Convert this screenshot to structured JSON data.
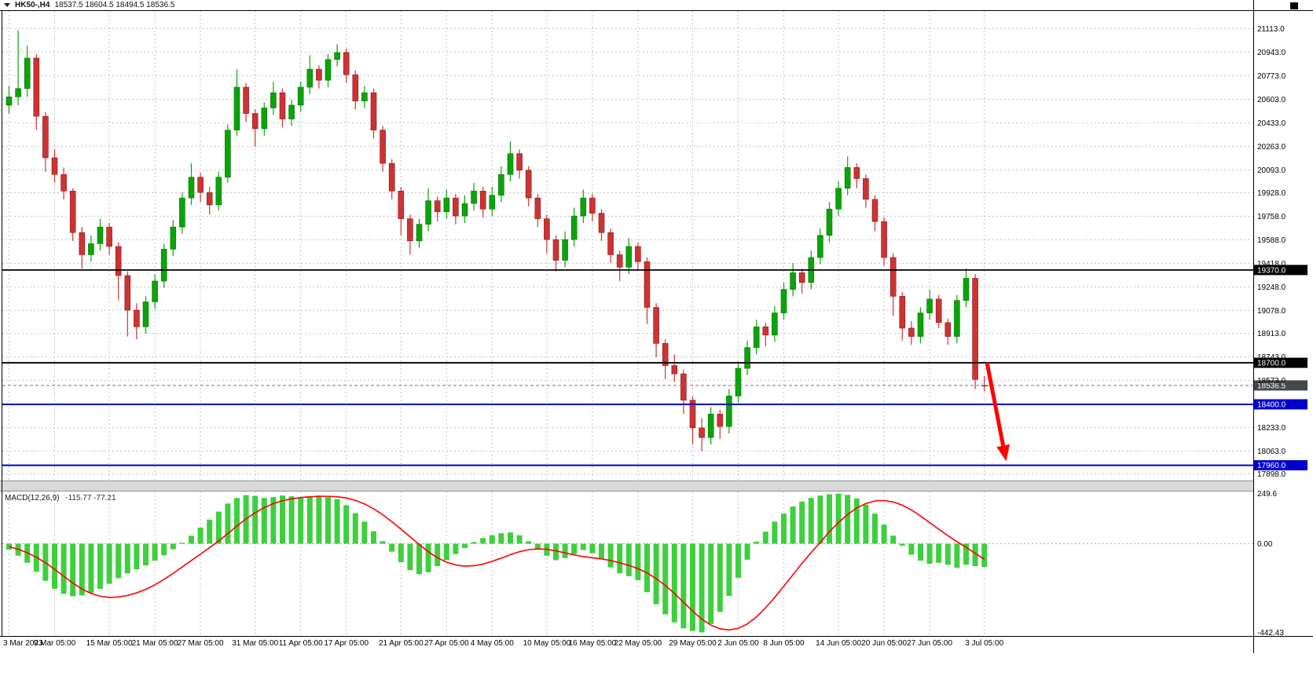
{
  "header": {
    "symbol_period": "HK50-,H4",
    "ohlc": "18537.5 18604.5 18494.5 18536.5"
  },
  "macd_panel": {
    "label": "MACD(12,26,9)",
    "values": "-115.77 -77.21"
  },
  "colors": {
    "bg": "#ffffff",
    "text": "#000000",
    "grid": "#c4c4c4",
    "up": "#0ca30a",
    "up_dark": "#067806",
    "down": "#cd3333",
    "down_dark": "#8b1a1a",
    "hist": "#3ecf3e",
    "signal": "#ff0000",
    "level_black": "#000000",
    "level_blue": "#0000cd",
    "bid_line": "#777777",
    "bid_badge": "#43484d",
    "arrow": "#ff0000",
    "separator": "#d9d9d9"
  },
  "price_axis": {
    "ticks": [
      "21113.0",
      "20943.0",
      "20773.0",
      "20603.0",
      "20433.0",
      "20263.0",
      "20093.0",
      "19928.0",
      "19758.0",
      "19588.0",
      "19418.0",
      "19248.0",
      "19078.0",
      "18913.0",
      "18743.0",
      "18573.0",
      "18233.0",
      "18063.0",
      "17898.0"
    ],
    "levels": [
      {
        "label": "19370.0",
        "value": 19370.0,
        "style": "black",
        "name": "resistance-19370"
      },
      {
        "label": "18700.0",
        "value": 18700.0,
        "style": "black",
        "name": "support-18700"
      },
      {
        "label": "18536.5",
        "value": 18536.5,
        "style": "bid",
        "name": "bid-price"
      },
      {
        "label": "18400.0",
        "value": 18400.0,
        "style": "blue",
        "name": "support-18400"
      },
      {
        "label": "17960.0",
        "value": 17960.0,
        "style": "blue",
        "name": "target-17960"
      }
    ]
  },
  "macd_axis": {
    "ticks": [
      "249.6",
      "0.00",
      "-442.43"
    ]
  },
  "time_axis": {
    "labels": [
      {
        "text": "3 Mar 2023",
        "index": 0
      },
      {
        "text": "9 Mar 05:00",
        "index": 5
      },
      {
        "text": "15 Mar 05:00",
        "index": 11
      },
      {
        "text": "21 Mar 05:00",
        "index": 16
      },
      {
        "text": "27 Mar 05:00",
        "index": 21
      },
      {
        "text": "31 Mar 05:00",
        "index": 27
      },
      {
        "text": "11 Apr 05:00",
        "index": 32
      },
      {
        "text": "17 Apr 05:00",
        "index": 37
      },
      {
        "text": "21 Apr 05:00",
        "index": 43
      },
      {
        "text": "27 Apr 05:00",
        "index": 48
      },
      {
        "text": "4 May 05:00",
        "index": 53
      },
      {
        "text": "10 May 05:00",
        "index": 59
      },
      {
        "text": "16 May 05:00",
        "index": 64
      },
      {
        "text": "22 May 05:00",
        "index": 69
      },
      {
        "text": "29 May 05:00",
        "index": 75
      },
      {
        "text": "2 Jun 05:00",
        "index": 80
      },
      {
        "text": "8 Jun 05:00",
        "index": 85
      },
      {
        "text": "14 Jun 05:00",
        "index": 91
      },
      {
        "text": "20 Jun 05:00",
        "index": 96
      },
      {
        "text": "27 Jun 05:00",
        "index": 101
      },
      {
        "text": "3 Jul 05:00",
        "index": 107
      }
    ]
  },
  "chart_data": {
    "type": "candlestick",
    "symbol": "HK50-",
    "timeframe": "H4",
    "price_range": [
      17850,
      21240
    ],
    "macd_range": [
      -460,
      260
    ],
    "hlines": [
      {
        "price": 19370.0,
        "color": "black"
      },
      {
        "price": 18700.0,
        "color": "black"
      },
      {
        "price": 18400.0,
        "color": "blue"
      },
      {
        "price": 17960.0,
        "color": "blue"
      }
    ],
    "bid": 18536.5,
    "last_bar": {
      "open": 18537.5,
      "high": 18604.5,
      "low": 18494.5,
      "close": 18536.5
    },
    "arrow": {
      "from_index": 107.6,
      "from_price": 18700,
      "to_index": 109.7,
      "to_price": 17990
    },
    "candles": [
      [
        20560,
        20700,
        20500,
        20620
      ],
      [
        20620,
        21100,
        20560,
        20680
      ],
      [
        20680,
        20990,
        20620,
        20900
      ],
      [
        20900,
        20930,
        20380,
        20480
      ],
      [
        20480,
        20510,
        20080,
        20180
      ],
      [
        20180,
        20240,
        20000,
        20060
      ],
      [
        20060,
        20110,
        19880,
        19940
      ],
      [
        19940,
        19960,
        19580,
        19640
      ],
      [
        19640,
        19680,
        19380,
        19480
      ],
      [
        19480,
        19620,
        19430,
        19560
      ],
      [
        19560,
        19740,
        19510,
        19680
      ],
      [
        19680,
        19710,
        19480,
        19540
      ],
      [
        19540,
        19570,
        19150,
        19330
      ],
      [
        19330,
        19360,
        18890,
        19080
      ],
      [
        19080,
        19130,
        18870,
        18960
      ],
      [
        18960,
        19180,
        18910,
        19140
      ],
      [
        19140,
        19340,
        19090,
        19290
      ],
      [
        19290,
        19560,
        19240,
        19520
      ],
      [
        19520,
        19730,
        19470,
        19680
      ],
      [
        19680,
        19930,
        19630,
        19890
      ],
      [
        19890,
        20140,
        19840,
        20040
      ],
      [
        20040,
        20070,
        19860,
        19930
      ],
      [
        19930,
        19970,
        19770,
        19840
      ],
      [
        19840,
        20080,
        19800,
        20040
      ],
      [
        20040,
        20420,
        20000,
        20380
      ],
      [
        20380,
        20820,
        20340,
        20690
      ],
      [
        20690,
        20720,
        20440,
        20500
      ],
      [
        20500,
        20530,
        20260,
        20390
      ],
      [
        20390,
        20580,
        20340,
        20540
      ],
      [
        20540,
        20730,
        20490,
        20650
      ],
      [
        20650,
        20680,
        20400,
        20460
      ],
      [
        20460,
        20600,
        20410,
        20560
      ],
      [
        20560,
        20730,
        20510,
        20690
      ],
      [
        20690,
        20920,
        20640,
        20820
      ],
      [
        20820,
        20850,
        20680,
        20740
      ],
      [
        20740,
        20930,
        20690,
        20890
      ],
      [
        20890,
        21000,
        20840,
        20940
      ],
      [
        20940,
        20970,
        20720,
        20780
      ],
      [
        20780,
        20810,
        20530,
        20590
      ],
      [
        20590,
        20700,
        20540,
        20650
      ],
      [
        20650,
        20680,
        20320,
        20380
      ],
      [
        20380,
        20410,
        20080,
        20140
      ],
      [
        20140,
        20170,
        19880,
        19940
      ],
      [
        19940,
        19970,
        19620,
        19740
      ],
      [
        19740,
        19770,
        19480,
        19580
      ],
      [
        19580,
        19740,
        19530,
        19700
      ],
      [
        19700,
        19960,
        19650,
        19870
      ],
      [
        19870,
        19900,
        19720,
        19790
      ],
      [
        19790,
        19950,
        19740,
        19890
      ],
      [
        19890,
        19920,
        19700,
        19760
      ],
      [
        19760,
        19910,
        19710,
        19850
      ],
      [
        19850,
        20000,
        19800,
        19940
      ],
      [
        19940,
        19970,
        19750,
        19810
      ],
      [
        19810,
        19970,
        19760,
        19910
      ],
      [
        19910,
        20120,
        19860,
        20060
      ],
      [
        20060,
        20300,
        20010,
        20210
      ],
      [
        20210,
        20240,
        20030,
        20090
      ],
      [
        20090,
        20120,
        19830,
        19890
      ],
      [
        19890,
        19920,
        19680,
        19740
      ],
      [
        19740,
        19770,
        19490,
        19590
      ],
      [
        19590,
        19620,
        19360,
        19440
      ],
      [
        19440,
        19650,
        19390,
        19590
      ],
      [
        19590,
        19820,
        19540,
        19760
      ],
      [
        19760,
        19950,
        19710,
        19890
      ],
      [
        19890,
        19920,
        19720,
        19780
      ],
      [
        19780,
        19810,
        19580,
        19640
      ],
      [
        19640,
        19670,
        19420,
        19480
      ],
      [
        19480,
        19510,
        19290,
        19390
      ],
      [
        19390,
        19600,
        19340,
        19540
      ],
      [
        19540,
        19570,
        19370,
        19430
      ],
      [
        19430,
        19460,
        18980,
        19100
      ],
      [
        19100,
        19130,
        18740,
        18840
      ],
      [
        18840,
        18870,
        18580,
        18680
      ],
      [
        18680,
        18760,
        18560,
        18620
      ],
      [
        18620,
        18650,
        18330,
        18430
      ],
      [
        18430,
        18460,
        18110,
        18230
      ],
      [
        18230,
        18300,
        18060,
        18160
      ],
      [
        18160,
        18380,
        18110,
        18330
      ],
      [
        18330,
        18360,
        18150,
        18240
      ],
      [
        18240,
        18510,
        18190,
        18460
      ],
      [
        18460,
        18710,
        18410,
        18660
      ],
      [
        18660,
        18860,
        18610,
        18810
      ],
      [
        18810,
        19010,
        18760,
        18960
      ],
      [
        18960,
        18990,
        18820,
        18900
      ],
      [
        18900,
        19110,
        18850,
        19060
      ],
      [
        19060,
        19280,
        19010,
        19230
      ],
      [
        19230,
        19420,
        19180,
        19350
      ],
      [
        19350,
        19380,
        19200,
        19280
      ],
      [
        19280,
        19510,
        19230,
        19460
      ],
      [
        19460,
        19670,
        19410,
        19620
      ],
      [
        19620,
        19860,
        19570,
        19810
      ],
      [
        19810,
        20010,
        19760,
        19960
      ],
      [
        19960,
        20190,
        19910,
        20110
      ],
      [
        20110,
        20140,
        19960,
        20030
      ],
      [
        20030,
        20060,
        19820,
        19880
      ],
      [
        19880,
        19910,
        19650,
        19720
      ],
      [
        19720,
        19750,
        19400,
        19460
      ],
      [
        19460,
        19490,
        19040,
        19180
      ],
      [
        19180,
        19210,
        18860,
        18950
      ],
      [
        18950,
        19000,
        18830,
        18890
      ],
      [
        18890,
        19100,
        18840,
        19060
      ],
      [
        19060,
        19230,
        19010,
        19160
      ],
      [
        19160,
        19190,
        18950,
        18990
      ],
      [
        18990,
        19020,
        18830,
        18890
      ],
      [
        18890,
        19190,
        18840,
        19150
      ],
      [
        19150,
        19380,
        19100,
        19310
      ],
      [
        19310,
        19340,
        18510,
        18580
      ],
      [
        18537.5,
        18604.5,
        18494.5,
        18536.5
      ]
    ],
    "macd": {
      "histogram": [
        -30,
        -60,
        -95,
        -140,
        -185,
        -225,
        -250,
        -262,
        -258,
        -245,
        -225,
        -200,
        -172,
        -148,
        -128,
        -108,
        -85,
        -58,
        -28,
        5,
        40,
        80,
        120,
        160,
        200,
        228,
        242,
        238,
        228,
        232,
        240,
        236,
        230,
        234,
        240,
        232,
        222,
        192,
        152,
        110,
        62,
        12,
        -40,
        -92,
        -132,
        -152,
        -142,
        -112,
        -82,
        -52,
        -22,
        8,
        28,
        42,
        52,
        56,
        42,
        12,
        -28,
        -60,
        -82,
        -72,
        -52,
        -32,
        -48,
        -78,
        -118,
        -148,
        -162,
        -182,
        -242,
        -302,
        -352,
        -392,
        -422,
        -435,
        -442,
        -400,
        -340,
        -260,
        -170,
        -80,
        10,
        60,
        110,
        150,
        185,
        210,
        228,
        240,
        246,
        249,
        243,
        225,
        195,
        150,
        95,
        40,
        -10,
        -55,
        -85,
        -100,
        -95,
        -105,
        -120,
        -105,
        -112,
        -115.77
      ],
      "signal": [
        -15,
        -28,
        -45,
        -68,
        -95,
        -128,
        -162,
        -196,
        -226,
        -248,
        -262,
        -268,
        -266,
        -258,
        -245,
        -228,
        -205,
        -178,
        -148,
        -116,
        -84,
        -52,
        -20,
        14,
        50,
        88,
        124,
        154,
        180,
        200,
        214,
        224,
        230,
        234,
        236,
        236,
        234,
        228,
        216,
        198,
        174,
        144,
        110,
        72,
        34,
        -4,
        -40,
        -70,
        -92,
        -106,
        -112,
        -110,
        -102,
        -88,
        -72,
        -55,
        -40,
        -30,
        -26,
        -28,
        -36,
        -46,
        -56,
        -64,
        -70,
        -76,
        -84,
        -95,
        -108,
        -124,
        -146,
        -174,
        -208,
        -248,
        -292,
        -336,
        -376,
        -406,
        -424,
        -430,
        -422,
        -400,
        -365,
        -320,
        -268,
        -212,
        -155,
        -98,
        -44,
        6,
        60,
        105,
        145,
        178,
        200,
        213,
        215,
        208,
        192,
        168,
        138,
        105,
        72,
        40,
        10,
        -18,
        -48,
        -77.21
      ]
    }
  }
}
